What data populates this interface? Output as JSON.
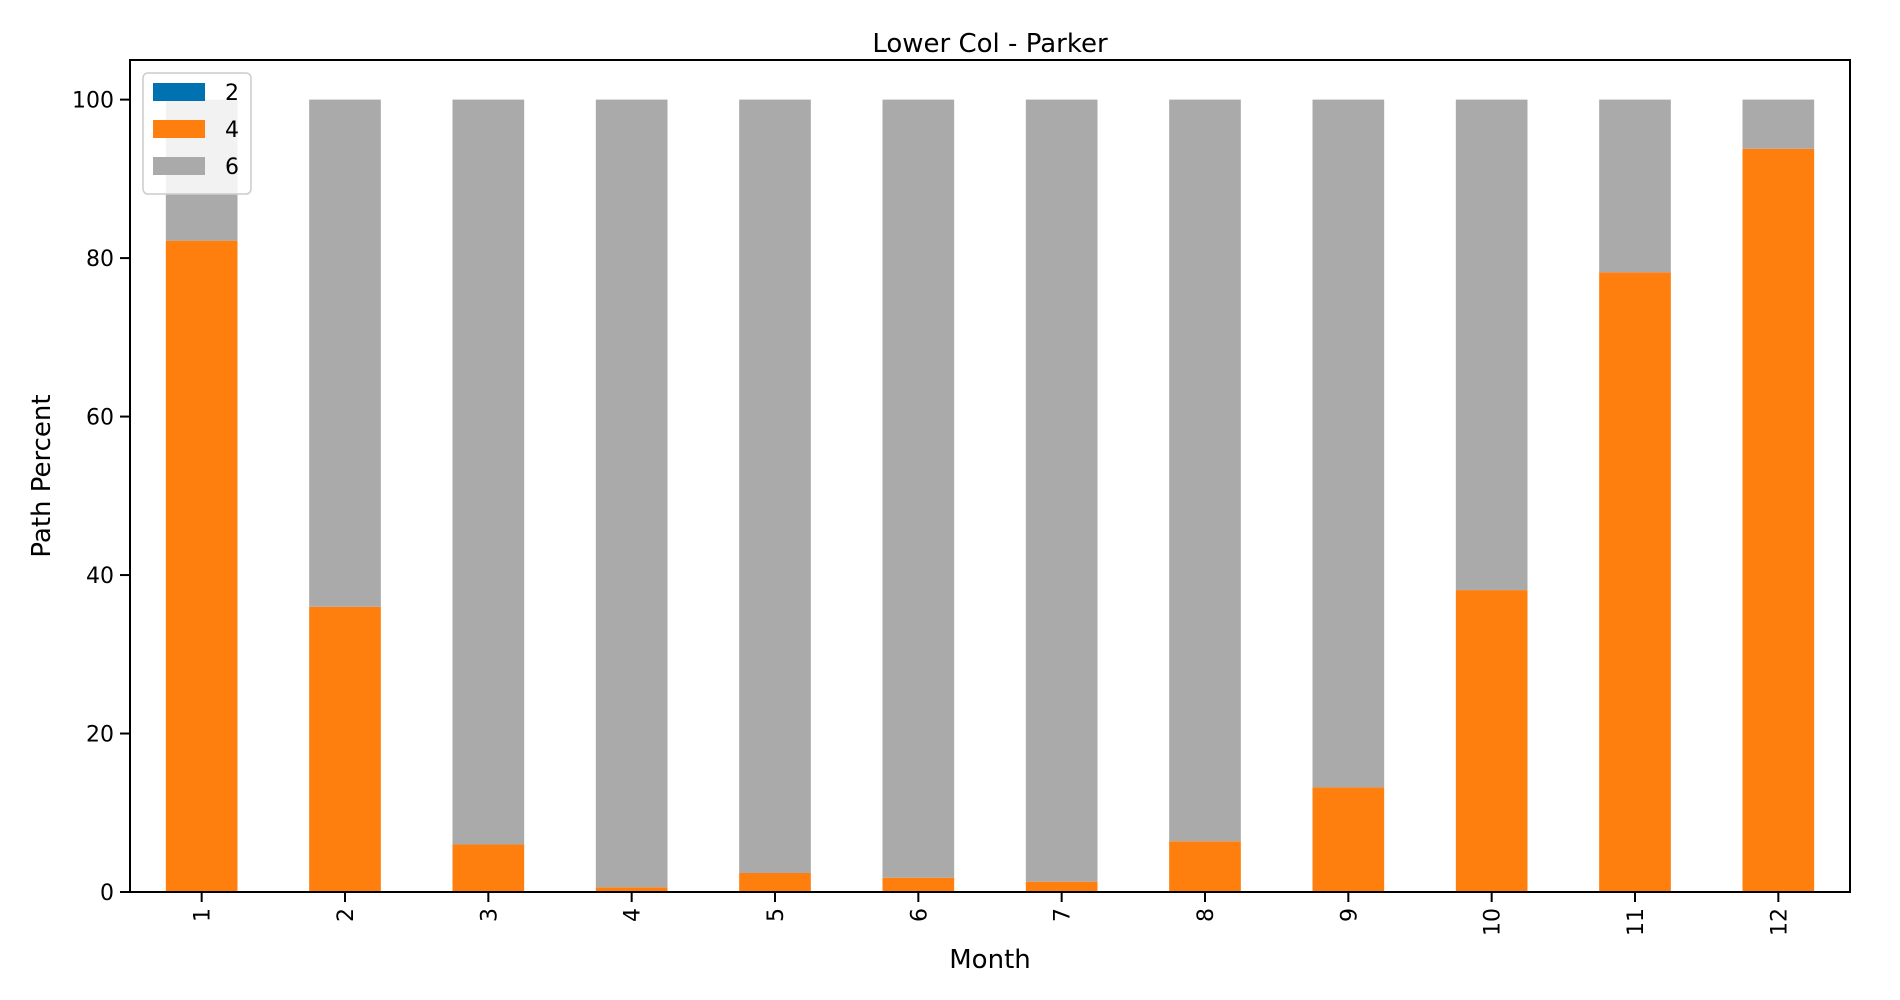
{
  "chart_data": {
    "type": "bar",
    "stacked": true,
    "title": "Lower Col - Parker",
    "xlabel": "Month",
    "ylabel": "Path Percent",
    "categories": [
      "1",
      "2",
      "3",
      "4",
      "5",
      "6",
      "7",
      "8",
      "9",
      "10",
      "11",
      "12"
    ],
    "ylim": [
      0,
      105
    ],
    "yticks": [
      0,
      20,
      40,
      60,
      80,
      100
    ],
    "grid": false,
    "legend_position": "top-left",
    "series": [
      {
        "name": "2",
        "color": "#0072b2",
        "values": [
          0,
          0,
          0,
          0,
          0,
          0,
          0,
          0,
          0,
          0,
          0,
          0
        ]
      },
      {
        "name": "4",
        "color": "#ff7f0e",
        "values": [
          82.2,
          36.0,
          6.0,
          0.6,
          2.4,
          1.8,
          1.3,
          6.4,
          13.2,
          38.1,
          78.2,
          93.8
        ]
      },
      {
        "name": "6",
        "color": "#aaaaaa",
        "values": [
          17.8,
          64.0,
          94.0,
          99.4,
          97.6,
          98.2,
          98.7,
          93.6,
          86.8,
          61.9,
          21.8,
          6.2
        ]
      }
    ]
  }
}
